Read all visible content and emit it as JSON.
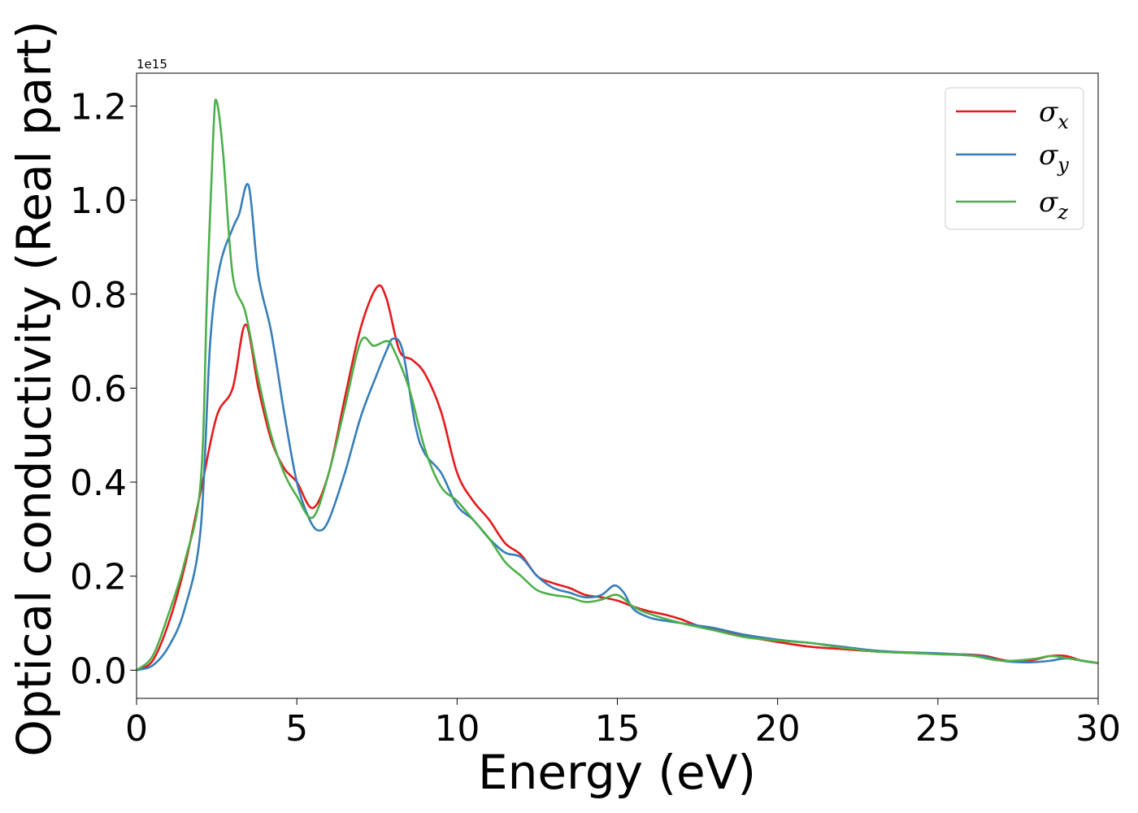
{
  "chart_data": {
    "type": "line",
    "xlabel": "Energy (eV)",
    "ylabel": "Optical conductivity (Real part)",
    "y_offset_label": "1e15",
    "xlim": [
      0,
      30
    ],
    "ylim": [
      -0.06,
      1.27
    ],
    "xticks": [
      0,
      5,
      10,
      15,
      20,
      25,
      30
    ],
    "xtick_labels": [
      "0",
      "5",
      "10",
      "15",
      "20",
      "25",
      "30"
    ],
    "yticks": [
      0.0,
      0.2,
      0.4,
      0.6,
      0.8,
      1.0,
      1.2
    ],
    "ytick_labels": [
      "0.0",
      "0.2",
      "0.4",
      "0.6",
      "0.8",
      "1.0",
      "1.2"
    ],
    "grid": false,
    "legend_position": "top-right",
    "series": [
      {
        "name": "σx",
        "symbol": "σ",
        "subscript": "x",
        "color": "#e41a1c",
        "x": [
          0,
          0.5,
          1.0,
          1.5,
          2.0,
          2.5,
          3.0,
          3.4,
          3.8,
          4.2,
          4.6,
          5.0,
          5.5,
          6.0,
          6.5,
          7.0,
          7.5,
          7.8,
          8.2,
          8.6,
          9.0,
          9.5,
          10.0,
          10.5,
          11.0,
          11.5,
          12.0,
          12.5,
          13.0,
          13.5,
          14.0,
          14.5,
          15.0,
          15.5,
          16.0,
          16.5,
          17.0,
          17.5,
          18.0,
          19.0,
          20.0,
          21.0,
          22.0,
          23.0,
          24.0,
          25.0,
          26.0,
          26.5,
          27.0,
          27.5,
          28.0,
          28.5,
          29.0,
          29.5,
          30.0
        ],
        "y": [
          0.0,
          0.02,
          0.1,
          0.22,
          0.38,
          0.54,
          0.6,
          0.735,
          0.6,
          0.49,
          0.43,
          0.4,
          0.345,
          0.42,
          0.58,
          0.73,
          0.815,
          0.79,
          0.68,
          0.66,
          0.63,
          0.55,
          0.42,
          0.36,
          0.32,
          0.27,
          0.245,
          0.2,
          0.185,
          0.175,
          0.16,
          0.155,
          0.148,
          0.135,
          0.125,
          0.118,
          0.108,
          0.095,
          0.088,
          0.072,
          0.06,
          0.05,
          0.045,
          0.04,
          0.037,
          0.035,
          0.033,
          0.03,
          0.022,
          0.018,
          0.022,
          0.03,
          0.03,
          0.02,
          0.015
        ]
      },
      {
        "name": "σy",
        "symbol": "σ",
        "subscript": "y",
        "color": "#377eb8",
        "x": [
          0,
          0.5,
          1.0,
          1.5,
          2.0,
          2.3,
          2.6,
          3.0,
          3.2,
          3.5,
          3.8,
          4.2,
          4.6,
          5.0,
          5.4,
          5.7,
          6.0,
          6.5,
          7.0,
          7.5,
          7.8,
          8.0,
          8.3,
          8.7,
          9.0,
          9.5,
          10.0,
          10.5,
          11.0,
          11.5,
          12.0,
          12.5,
          13.0,
          13.5,
          14.0,
          14.5,
          14.9,
          15.2,
          15.5,
          16.0,
          16.5,
          17.0,
          17.5,
          18.0,
          19.0,
          20.0,
          21.0,
          22.0,
          23.0,
          24.0,
          25.0,
          26.0,
          26.5,
          27.0,
          27.5,
          28.0,
          28.5,
          29.0,
          29.5,
          30.0
        ],
        "y": [
          0.0,
          0.01,
          0.05,
          0.13,
          0.3,
          0.7,
          0.86,
          0.94,
          0.97,
          1.03,
          0.84,
          0.72,
          0.55,
          0.4,
          0.32,
          0.297,
          0.32,
          0.42,
          0.54,
          0.63,
          0.68,
          0.705,
          0.68,
          0.52,
          0.46,
          0.42,
          0.35,
          0.32,
          0.28,
          0.25,
          0.24,
          0.2,
          0.175,
          0.165,
          0.155,
          0.16,
          0.18,
          0.165,
          0.13,
          0.112,
          0.105,
          0.1,
          0.095,
          0.09,
          0.075,
          0.065,
          0.058,
          0.05,
          0.042,
          0.038,
          0.036,
          0.032,
          0.028,
          0.02,
          0.017,
          0.017,
          0.02,
          0.025,
          0.02,
          0.015
        ]
      },
      {
        "name": "σz",
        "symbol": "σ",
        "subscript": "z",
        "color": "#4daf4a",
        "x": [
          0,
          0.5,
          1.0,
          1.5,
          2.0,
          2.2,
          2.4,
          2.5,
          2.7,
          3.0,
          3.4,
          3.8,
          4.2,
          4.6,
          5.0,
          5.5,
          6.0,
          6.5,
          7.0,
          7.4,
          7.8,
          8.0,
          8.5,
          9.0,
          9.5,
          10.0,
          10.5,
          11.0,
          11.5,
          12.0,
          12.5,
          13.0,
          13.5,
          14.0,
          14.5,
          15.0,
          15.5,
          16.0,
          17.0,
          18.0,
          19.0,
          20.0,
          21.0,
          22.0,
          23.0,
          24.0,
          25.0,
          26.0,
          27.0,
          28.0,
          28.5,
          29.0,
          30.0
        ],
        "y": [
          0.0,
          0.03,
          0.12,
          0.23,
          0.4,
          0.8,
          1.15,
          1.21,
          1.1,
          0.84,
          0.76,
          0.62,
          0.5,
          0.42,
          0.37,
          0.325,
          0.42,
          0.56,
          0.7,
          0.69,
          0.7,
          0.685,
          0.6,
          0.47,
          0.39,
          0.36,
          0.32,
          0.28,
          0.23,
          0.2,
          0.17,
          0.16,
          0.155,
          0.145,
          0.15,
          0.16,
          0.135,
          0.12,
          0.1,
          0.085,
          0.07,
          0.063,
          0.058,
          0.048,
          0.04,
          0.037,
          0.034,
          0.031,
          0.02,
          0.024,
          0.03,
          0.026,
          0.015
        ]
      }
    ]
  }
}
